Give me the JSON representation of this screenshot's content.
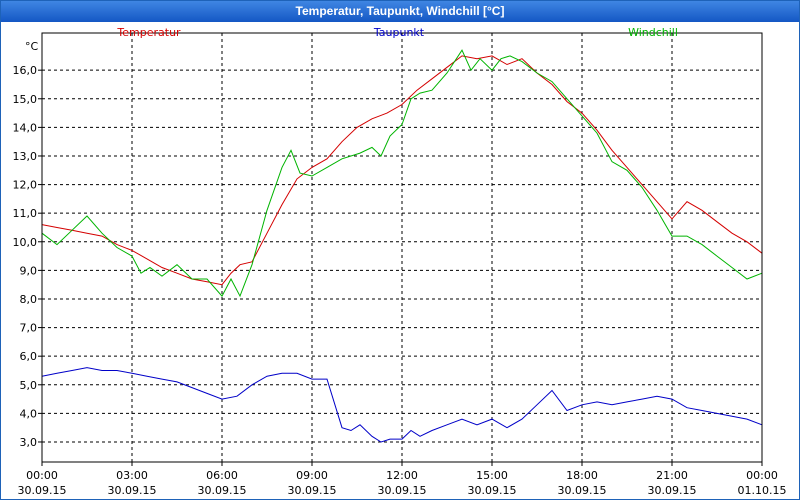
{
  "window": {
    "title": "Temperatur, Taupunkt, Windchill [°C]"
  },
  "chart_data": {
    "type": "line",
    "title": "Temperatur, Taupunkt, Windchill [°C]",
    "ylabel": "°C",
    "xlabel": "",
    "ylim": [
      2.3,
      17.3
    ],
    "xlim": [
      0,
      24
    ],
    "grid": true,
    "legend": "top",
    "y_ticks": [
      3,
      4,
      5,
      6,
      7,
      8,
      9,
      10,
      11,
      12,
      13,
      14,
      15,
      16
    ],
    "y_tick_labels": [
      "3,0",
      "4,0",
      "5,0",
      "6,0",
      "7,0",
      "8,0",
      "9,0",
      "10,0",
      "11,0",
      "12,0",
      "13,0",
      "14,0",
      "15,0",
      "16,0"
    ],
    "x_ticks": [
      0,
      3,
      6,
      9,
      12,
      15,
      18,
      21,
      24
    ],
    "x_tick_times": [
      "00:00",
      "03:00",
      "06:00",
      "09:00",
      "12:00",
      "15:00",
      "18:00",
      "21:00",
      "00:00"
    ],
    "x_tick_dates": [
      "30.09.15",
      "30.09.15",
      "30.09.15",
      "30.09.15",
      "30.09.15",
      "30.09.15",
      "30.09.15",
      "30.09.15",
      "01.10.15"
    ],
    "series": [
      {
        "name": "Temperatur",
        "color": "#d40000",
        "x": [
          0,
          0.5,
          1,
          1.5,
          2,
          2.5,
          3,
          3.5,
          4,
          4.5,
          5,
          5.5,
          6,
          6.3,
          6.6,
          7,
          7.5,
          8,
          8.5,
          9,
          9.5,
          10,
          10.5,
          11,
          11.5,
          12,
          12.5,
          13,
          13.5,
          14,
          14.5,
          15,
          15.5,
          16,
          16.5,
          17,
          17.5,
          18,
          18.5,
          19,
          19.5,
          20,
          20.5,
          21,
          21.5,
          22,
          22.5,
          23,
          23.5,
          24
        ],
        "values": [
          10.6,
          10.5,
          10.4,
          10.3,
          10.2,
          9.9,
          9.7,
          9.4,
          9.1,
          8.9,
          8.7,
          8.6,
          8.5,
          8.9,
          9.2,
          9.3,
          10.3,
          11.3,
          12.2,
          12.6,
          12.9,
          13.5,
          14.0,
          14.3,
          14.5,
          14.8,
          15.3,
          15.7,
          16.1,
          16.5,
          16.4,
          16.5,
          16.2,
          16.4,
          15.9,
          15.5,
          14.9,
          14.5,
          13.9,
          13.2,
          12.6,
          12.0,
          11.4,
          10.8,
          11.4,
          11.1,
          10.7,
          10.3,
          10.0,
          9.6
        ]
      },
      {
        "name": "Taupunkt",
        "color": "#0000c8",
        "x": [
          0,
          0.5,
          1,
          1.5,
          2,
          2.5,
          3,
          3.5,
          4,
          4.5,
          5,
          5.5,
          6,
          6.5,
          7,
          7.5,
          8,
          8.5,
          9,
          9.5,
          10,
          10.3,
          10.6,
          11,
          11.3,
          11.6,
          12,
          12.3,
          12.6,
          13,
          13.5,
          14,
          14.5,
          15,
          15.5,
          16,
          16.5,
          17,
          17.5,
          18,
          18.5,
          19,
          19.5,
          20,
          20.5,
          21,
          21.5,
          22,
          22.5,
          23,
          23.5,
          24
        ],
        "values": [
          5.3,
          5.4,
          5.5,
          5.6,
          5.5,
          5.5,
          5.4,
          5.3,
          5.2,
          5.1,
          4.9,
          4.7,
          4.5,
          4.6,
          5.0,
          5.3,
          5.4,
          5.4,
          5.2,
          5.2,
          3.5,
          3.4,
          3.6,
          3.2,
          3.0,
          3.1,
          3.1,
          3.4,
          3.2,
          3.4,
          3.6,
          3.8,
          3.6,
          3.8,
          3.5,
          3.8,
          4.3,
          4.8,
          4.1,
          4.3,
          4.4,
          4.3,
          4.4,
          4.5,
          4.6,
          4.5,
          4.2,
          4.1,
          4.0,
          3.9,
          3.8,
          3.6
        ]
      },
      {
        "name": "Windchill",
        "color": "#00b400",
        "x": [
          0,
          0.5,
          1,
          1.5,
          2,
          2.5,
          3,
          3.3,
          3.6,
          4,
          4.5,
          5,
          5.5,
          6,
          6.3,
          6.6,
          7,
          7.5,
          8,
          8.3,
          8.6,
          9,
          9.5,
          10,
          10.3,
          10.6,
          11,
          11.3,
          11.6,
          12,
          12.3,
          12.6,
          13,
          13.5,
          14,
          14.3,
          14.6,
          15,
          15.3,
          15.6,
          16,
          16.5,
          17,
          17.5,
          18,
          18.5,
          19,
          19.5,
          20,
          20.5,
          21,
          21.5,
          22,
          22.5,
          23,
          23.5,
          24
        ],
        "values": [
          10.3,
          9.9,
          10.4,
          10.9,
          10.3,
          9.8,
          9.5,
          8.9,
          9.1,
          8.8,
          9.2,
          8.7,
          8.7,
          8.1,
          8.7,
          8.1,
          9.2,
          11.1,
          12.6,
          13.2,
          12.4,
          12.3,
          12.6,
          12.9,
          13.0,
          13.1,
          13.3,
          13.0,
          13.7,
          14.1,
          15.0,
          15.2,
          15.3,
          15.9,
          16.7,
          16.0,
          16.4,
          16.0,
          16.4,
          16.5,
          16.3,
          15.9,
          15.6,
          15.0,
          14.4,
          13.8,
          12.8,
          12.5,
          11.9,
          11.1,
          10.2,
          10.2,
          9.9,
          9.5,
          9.1,
          8.7,
          8.9
        ]
      }
    ]
  }
}
